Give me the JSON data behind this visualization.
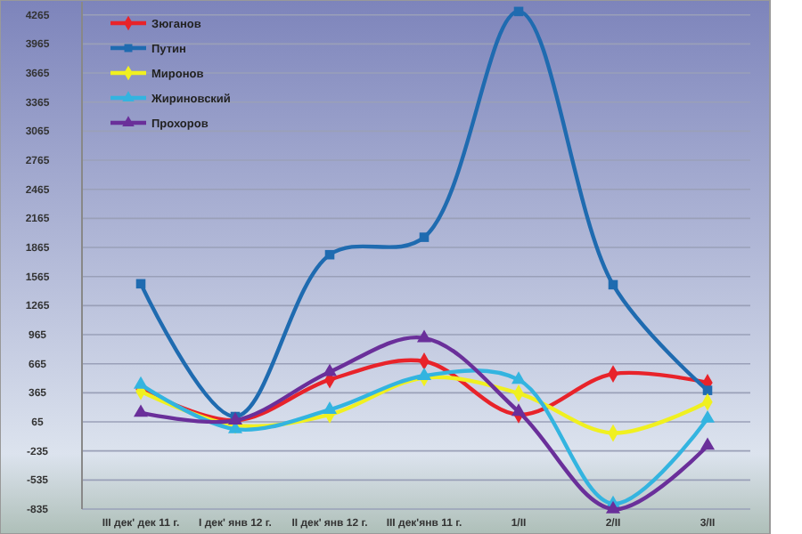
{
  "chart_data": {
    "type": "line",
    "categories": [
      "III дек' дек 11 г.",
      "I дек' янв 12 г.",
      "II дек' янв 12 г.",
      "III дек'янв 11 г.",
      "1/II",
      "2/II",
      "3/II"
    ],
    "series": [
      {
        "name": "Зюганов",
        "color": "#e8232a",
        "marker": "diamond",
        "values": [
          400,
          80,
          500,
          690,
          140,
          560,
          470
        ]
      },
      {
        "name": "Путин",
        "color": "#1f6bb0",
        "marker": "square",
        "values": [
          1490,
          120,
          1790,
          1970,
          4300,
          1480,
          390
        ]
      },
      {
        "name": "Миронов",
        "color": "#f0f020",
        "marker": "diamond",
        "values": [
          380,
          30,
          140,
          520,
          360,
          -50,
          270
        ]
      },
      {
        "name": "Жириновский",
        "color": "#33b4e0",
        "marker": "triangle",
        "values": [
          450,
          -10,
          190,
          540,
          500,
          -780,
          100
        ]
      },
      {
        "name": "Прохоров",
        "color": "#6a2f9a",
        "marker": "triangle",
        "values": [
          160,
          80,
          580,
          930,
          170,
          -835,
          -180
        ]
      }
    ],
    "ylim": [
      -835,
      4400
    ],
    "yticks": [
      -835,
      -535,
      -235,
      65,
      365,
      665,
      965,
      1265,
      1565,
      1865,
      2165,
      2465,
      2765,
      3065,
      3365,
      3665,
      3965,
      4265
    ],
    "grid": "y",
    "legend": "top left"
  }
}
